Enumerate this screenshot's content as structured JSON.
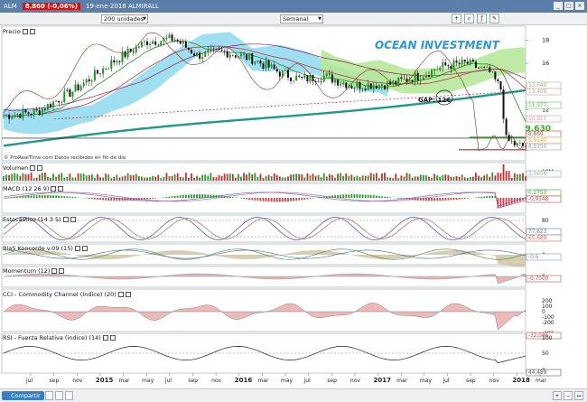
{
  "window": {
    "symbol": "ALM",
    "price_badge": "8,860 (-0,06%)",
    "date_title": "19-ene-2018 ALMIRALL"
  },
  "toolbar": {
    "units_select": "200 unidades",
    "period_select": "Semanal"
  },
  "panels": {
    "price": "Precio",
    "volume": "Volumen",
    "macd": "MACD (12 26 9)",
    "stochastic": "Estocástico (14 3 5)",
    "bias": "BiaS Koncorde v.09 (15)",
    "momentum": "Momentum (12)",
    "cci": "CCI - Commodity Channel (Indice) (20)",
    "rsi": "RSI - Fuerza Relativa (indice) (14)"
  },
  "annotations": {
    "watermark": "OCEAN INVESTMENT",
    "gap": "GAP: 12€",
    "target": "9.630",
    "source": "© ProRealTime.com  Datos recibidos en fin de día"
  },
  "price_axis": {
    "ticks": [
      "18",
      "16",
      "14",
      "12",
      "10"
    ],
    "badges": [
      {
        "text": "13,648",
        "color": "#9cc08a"
      },
      {
        "text": "13,408",
        "color": "#c9a0a0"
      },
      {
        "text": "11,977",
        "color": "#5ad04a"
      },
      {
        "text": "10,511",
        "color": "#d6a0a0"
      },
      {
        "text": "8,860",
        "color": "#e03030"
      },
      {
        "text": "8,9140",
        "color": "#e6b060"
      },
      {
        "text": "8,5150",
        "color": "#9a9a9a"
      }
    ]
  },
  "volume_axis": {
    "ticks": [
      "10M"
    ],
    "badges": [
      {
        "text": "2,0656",
        "color": "#8ab8a0"
      }
    ]
  },
  "macd_axis": {
    "ticks": [
      "0"
    ],
    "badges": [
      {
        "text": "0,2753",
        "color": "#4aa04a"
      },
      {
        "text": "-0,9348",
        "color": "#d04040"
      }
    ]
  },
  "stoch_axis": {
    "ticks": [
      "80",
      "20"
    ],
    "badges": [
      {
        "text": "77,623",
        "color": "#5a70c8"
      },
      {
        "text": "65,689",
        "color": "#c87060"
      }
    ]
  },
  "bias_axis": {
    "ticks": [
      "0"
    ],
    "badges": [
      {
        "text": "-0,6",
        "color": "#70a0d0"
      }
    ]
  },
  "momentum_axis": {
    "ticks": [
      "0"
    ],
    "badges": [
      {
        "text": "-0,7000",
        "color": "#c05050"
      }
    ]
  },
  "cci_axis": {
    "ticks": [
      "200",
      "100",
      "0",
      "-100",
      "-200",
      "-400"
    ],
    "badges": [
      {
        "text": "-32,086",
        "color": "#c05050"
      }
    ]
  },
  "rsi_axis": {
    "ticks": [
      "100",
      "50",
      "0"
    ],
    "badges": [
      {
        "text": "44,489",
        "color": "#5a5a5a"
      }
    ]
  },
  "time_axis": [
    "jul",
    "sep",
    "nov",
    "2015",
    "mar",
    "may",
    "jul",
    "sep",
    "nov",
    "2016",
    "mar",
    "may",
    "jul",
    "sep",
    "nov",
    "2017",
    "mar",
    "may",
    "jul",
    "sep",
    "nov",
    "2018",
    "mar"
  ],
  "footer": {
    "share_label": "Compartir"
  },
  "colors": {
    "titlebar": "#5b7fa8",
    "cloud_blue": "#8fd8f0",
    "cloud_green": "#b6e89a",
    "long_ma": "#1f9a8a",
    "price_line": "#111111"
  }
}
